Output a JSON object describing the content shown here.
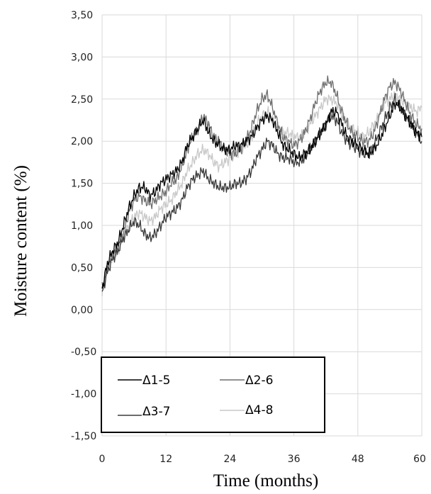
{
  "chart_data": {
    "type": "line",
    "title": "",
    "xlabel": "Time (months)",
    "ylabel": "Moisture content (%)",
    "xlim": [
      0,
      60
    ],
    "ylim": [
      -1.5,
      3.5
    ],
    "x_ticks": [
      "0",
      "12",
      "24",
      "36",
      "48",
      "60"
    ],
    "y_ticks": [
      "3,50",
      "3,00",
      "2,50",
      "2,00",
      "1,50",
      "1,00",
      "0,50",
      "0,00",
      "-0,50",
      "-1,00",
      "-1,50"
    ],
    "grid": "vertical and horizontal",
    "legend_placement": "bottom-left inside plot",
    "x": [
      0,
      1,
      2,
      3,
      4,
      5,
      6,
      7,
      8,
      9,
      10,
      11,
      12,
      13,
      14,
      15,
      16,
      17,
      18,
      19,
      20,
      21,
      22,
      23,
      24,
      25,
      26,
      27,
      28,
      29,
      30,
      31,
      32,
      33,
      34,
      35,
      36,
      37,
      38,
      39,
      40,
      41,
      42,
      43,
      44,
      45,
      46,
      47,
      48,
      49,
      50,
      51,
      52,
      53,
      54,
      55,
      56,
      57,
      58,
      59,
      60
    ],
    "series": [
      {
        "name": "Δ1-5",
        "color": "#000000",
        "values": [
          0.25,
          0.55,
          0.7,
          0.8,
          1.0,
          1.2,
          1.35,
          1.45,
          1.45,
          1.35,
          1.4,
          1.5,
          1.55,
          1.6,
          1.65,
          1.75,
          1.95,
          2.05,
          2.15,
          2.25,
          2.1,
          2.0,
          1.95,
          1.9,
          1.9,
          1.95,
          1.95,
          2.0,
          2.05,
          2.15,
          2.25,
          2.3,
          2.25,
          2.1,
          1.95,
          1.9,
          1.85,
          1.8,
          1.85,
          1.9,
          2.0,
          2.1,
          2.2,
          2.35,
          2.35,
          2.2,
          2.05,
          2.0,
          1.95,
          1.9,
          1.85,
          1.9,
          2.0,
          2.15,
          2.3,
          2.45,
          2.4,
          2.3,
          2.2,
          2.1,
          2.05
        ]
      },
      {
        "name": "Δ2-6",
        "color": "#6e6e6e",
        "values": [
          0.25,
          0.5,
          0.65,
          0.75,
          0.9,
          1.15,
          1.3,
          1.35,
          1.3,
          1.25,
          1.3,
          1.35,
          1.4,
          1.5,
          1.55,
          1.7,
          1.9,
          2.05,
          2.15,
          2.3,
          2.2,
          2.05,
          2.0,
          1.9,
          1.85,
          1.85,
          1.9,
          2.0,
          2.15,
          2.35,
          2.5,
          2.55,
          2.4,
          2.2,
          2.05,
          2.0,
          1.95,
          2.0,
          2.1,
          2.25,
          2.45,
          2.6,
          2.7,
          2.7,
          2.55,
          2.35,
          2.2,
          2.1,
          2.05,
          2.0,
          2.0,
          2.1,
          2.3,
          2.5,
          2.65,
          2.7,
          2.6,
          2.45,
          2.3,
          2.2,
          2.15
        ]
      },
      {
        "name": "Δ3-7",
        "color": "#3a3a3a",
        "values": [
          0.2,
          0.45,
          0.6,
          0.7,
          0.85,
          0.95,
          1.05,
          1.0,
          0.9,
          0.85,
          0.9,
          1.0,
          1.1,
          1.15,
          1.2,
          1.3,
          1.45,
          1.55,
          1.6,
          1.65,
          1.55,
          1.5,
          1.45,
          1.45,
          1.45,
          1.5,
          1.5,
          1.55,
          1.65,
          1.8,
          1.9,
          2.0,
          1.95,
          1.85,
          1.8,
          1.8,
          1.75,
          1.75,
          1.8,
          1.9,
          2.0,
          2.1,
          2.2,
          2.3,
          2.25,
          2.1,
          2.0,
          1.95,
          1.9,
          1.85,
          1.85,
          1.95,
          2.1,
          2.25,
          2.4,
          2.5,
          2.4,
          2.3,
          2.2,
          2.1,
          2.0
        ]
      },
      {
        "name": "Δ4-8",
        "color": "#c8c8c8",
        "values": [
          0.2,
          0.5,
          0.6,
          0.7,
          0.85,
          1.0,
          1.1,
          1.15,
          1.1,
          1.05,
          1.1,
          1.2,
          1.25,
          1.3,
          1.4,
          1.5,
          1.65,
          1.75,
          1.85,
          1.9,
          1.85,
          1.75,
          1.7,
          1.75,
          1.8,
          1.85,
          1.9,
          1.95,
          2.05,
          2.2,
          2.3,
          2.35,
          2.25,
          2.15,
          2.1,
          2.1,
          2.05,
          2.05,
          2.1,
          2.2,
          2.3,
          2.4,
          2.5,
          2.5,
          2.45,
          2.3,
          2.2,
          2.15,
          2.1,
          2.05,
          2.1,
          2.2,
          2.3,
          2.45,
          2.5,
          2.55,
          2.5,
          2.45,
          2.4,
          2.35,
          2.4
        ]
      }
    ]
  }
}
